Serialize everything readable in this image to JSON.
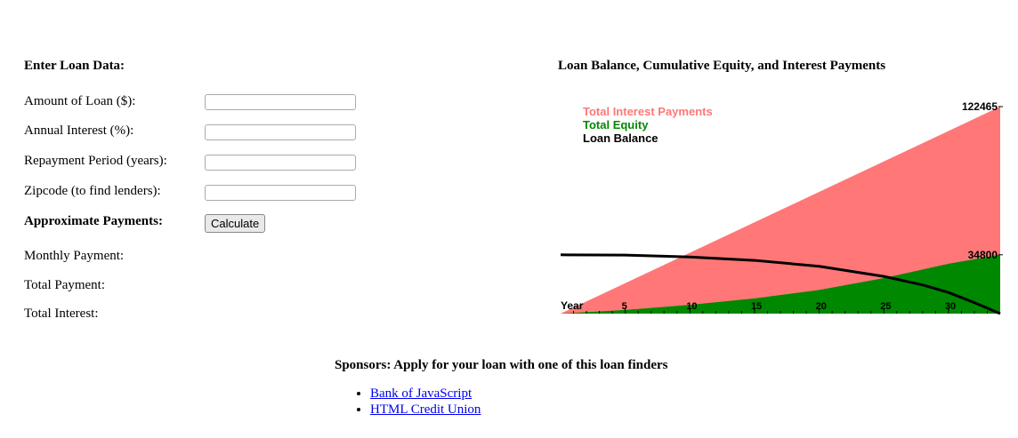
{
  "form": {
    "heading": "Enter Loan Data:",
    "fields": [
      {
        "label": "Amount of Loan ($):",
        "value": ""
      },
      {
        "label": "Annual Interest (%):",
        "value": ""
      },
      {
        "label": "Repayment Period (years):",
        "value": ""
      },
      {
        "label": "Zipcode (to find lenders):",
        "value": ""
      }
    ],
    "payments_heading": "Approximate Payments:",
    "calculate_label": "Calculate",
    "results": [
      {
        "label": "Monthly Payment:",
        "value": ""
      },
      {
        "label": "Total Payment:",
        "value": ""
      },
      {
        "label": "Total Interest:",
        "value": ""
      }
    ]
  },
  "chart_title": "Loan Balance, Cumulative Equity, and Interest Payments",
  "chart_data": {
    "type": "area",
    "xlabel": "Year",
    "x_ticks": [
      5,
      10,
      15,
      20,
      25,
      30
    ],
    "x_range": [
      0,
      34
    ],
    "y_labels": [
      122465,
      34800
    ],
    "ylim": [
      0,
      122465
    ],
    "legend_placement": "top-left",
    "series": [
      {
        "name": "Total Interest Payments",
        "color": "#ff7777",
        "x": [
          0,
          34
        ],
        "values": [
          0,
          122465
        ]
      },
      {
        "name": "Total Equity",
        "color": "#008800",
        "x": [
          0,
          5,
          10,
          15,
          20,
          25,
          30,
          34
        ],
        "values": [
          0,
          2200,
          5200,
          9000,
          14000,
          21000,
          29500,
          34800
        ]
      },
      {
        "name": "Loan Balance",
        "color": "#000000",
        "x": [
          0,
          5,
          10,
          15,
          20,
          25,
          28,
          30,
          32,
          34
        ],
        "values": [
          34800,
          34600,
          33500,
          31500,
          28000,
          22000,
          17000,
          12500,
          6500,
          0
        ]
      }
    ]
  },
  "sponsors": {
    "heading": "Sponsors: Apply for your loan with one of this loan finders",
    "lenders": [
      "Bank of JavaScript",
      "HTML Credit Union"
    ]
  }
}
